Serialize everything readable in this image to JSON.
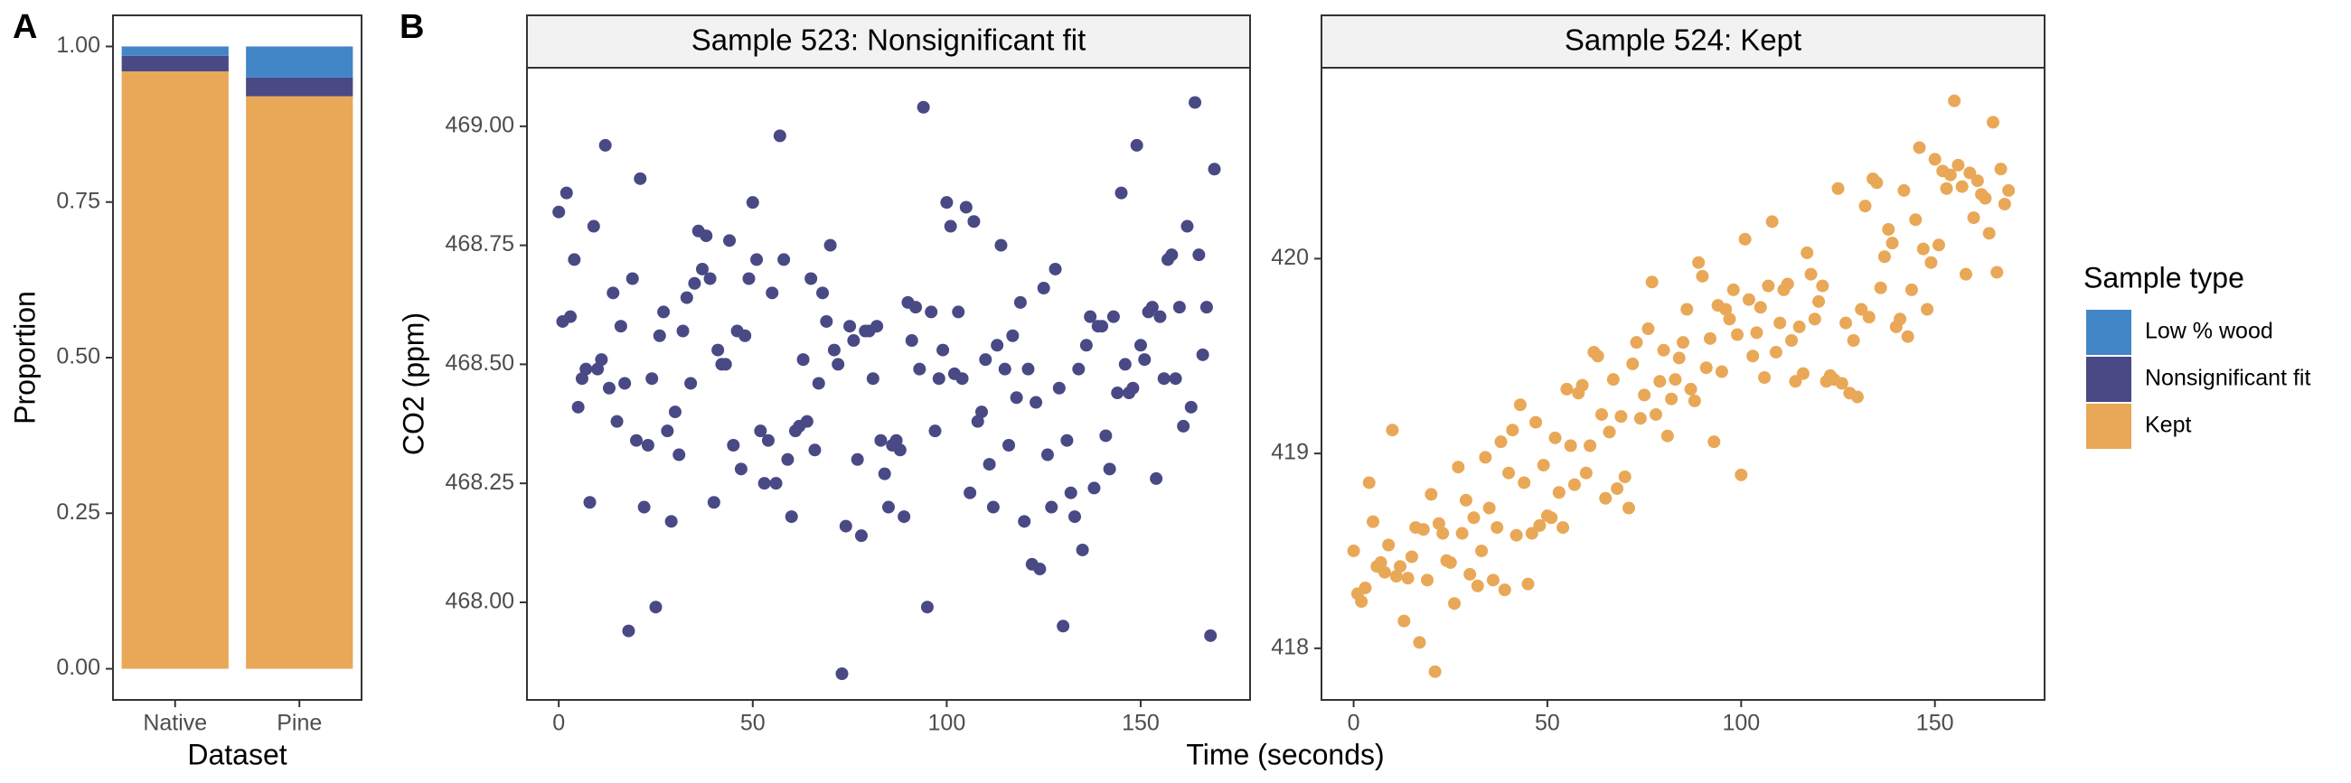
{
  "chart_data": [
    {
      "type": "bar",
      "panel_label": "A",
      "stacked": true,
      "categories": [
        "Native",
        "Pine"
      ],
      "xlabel": "Dataset",
      "ylabel": "Proportion",
      "series": [
        {
          "name": "Low % wood",
          "color": "#4286c8",
          "values": [
            0.015,
            0.05
          ]
        },
        {
          "name": "Nonsignificant fit",
          "color": "#494985",
          "values": [
            0.025,
            0.03
          ]
        },
        {
          "name": "Kept",
          "color": "#e9a857",
          "values": [
            0.96,
            0.92
          ]
        }
      ],
      "ylim": [
        -0.05,
        1.05
      ],
      "yticks": [
        {
          "value": 0,
          "label": "0.00"
        },
        {
          "value": 0.25,
          "label": "0.25"
        },
        {
          "value": 0.5,
          "label": "0.50"
        },
        {
          "value": 0.75,
          "label": "0.75"
        },
        {
          "value": 1,
          "label": "1.00"
        }
      ],
      "legend_title": "Sample type",
      "legend": "right"
    },
    {
      "type": "scatter",
      "panel_label": "B",
      "title": "Sample 523: Nonsignificant fit",
      "ylabel": "CO2 (ppm)",
      "xlabel": "Time (seconds)",
      "color": "#494985",
      "xlim": [
        -8.2,
        178.2
      ],
      "xticks": [
        0,
        50,
        100,
        150
      ],
      "ylim": [
        467.795,
        469.123
      ],
      "yticks": [
        {
          "value": 468,
          "label": "468.00"
        },
        468.25,
        {
          "value": 468.5,
          "label": "468.50"
        },
        468.75,
        {
          "value": 469,
          "label": "469.00"
        }
      ],
      "x": [
        0,
        1,
        2,
        3,
        4,
        5,
        6,
        7,
        8,
        9,
        10,
        11,
        12,
        13,
        14,
        15,
        16,
        17,
        18,
        19,
        20,
        21,
        22,
        23,
        24,
        25,
        26,
        27,
        28,
        29,
        30,
        31,
        32,
        33,
        34,
        35,
        36,
        37,
        38,
        39,
        40,
        41,
        42,
        43,
        44,
        45,
        46,
        47,
        48,
        49,
        50,
        51,
        52,
        53,
        54,
        55,
        56,
        57,
        58,
        59,
        60,
        61,
        62,
        63,
        64,
        65,
        66,
        67,
        68,
        69,
        70,
        71,
        72,
        73,
        74,
        75,
        76,
        77,
        78,
        79,
        80,
        81,
        82,
        83,
        84,
        85,
        86,
        87,
        88,
        89,
        90,
        91,
        92,
        93,
        94,
        95,
        96,
        97,
        98,
        99,
        100,
        101,
        102,
        103,
        104,
        105,
        106,
        107,
        108,
        109,
        110,
        111,
        112,
        113,
        114,
        115,
        116,
        117,
        118,
        119,
        120,
        121,
        122,
        123,
        124,
        125,
        126,
        127,
        128,
        129,
        130,
        131,
        132,
        133,
        134,
        135,
        136,
        137,
        138,
        139,
        140,
        141,
        142,
        143,
        144,
        145,
        146,
        147,
        148,
        149,
        150,
        151,
        152,
        153,
        154,
        155,
        156,
        157,
        158,
        159,
        160,
        161,
        162,
        163,
        164,
        165,
        166,
        167,
        168,
        169
      ],
      "values": [
        468.82,
        468.59,
        468.86,
        468.6,
        468.72,
        468.41,
        468.47,
        468.49,
        468.21,
        468.79,
        468.49,
        468.51,
        468.96,
        468.45,
        468.65,
        468.38,
        468.58,
        468.46,
        467.94,
        468.68,
        468.34,
        468.89,
        468.2,
        468.33,
        468.47,
        467.99,
        468.56,
        468.61,
        468.36,
        468.17,
        468.4,
        468.31,
        468.57,
        468.64,
        468.46,
        468.67,
        468.78,
        468.7,
        468.77,
        468.68,
        468.21,
        468.53,
        468.5,
        468.5,
        468.76,
        468.33,
        468.57,
        468.28,
        468.56,
        468.68,
        468.84,
        468.72,
        468.36,
        468.25,
        468.34,
        468.65,
        468.25,
        468.98,
        468.72,
        468.3,
        468.18,
        468.36,
        468.37,
        468.51,
        468.38,
        468.68,
        468.32,
        468.46,
        468.65,
        468.59,
        468.75,
        468.53,
        468.5,
        467.85,
        468.16,
        468.58,
        468.55,
        468.3,
        468.14,
        468.57,
        468.57,
        468.47,
        468.58,
        468.34,
        468.27,
        468.2,
        468.33,
        468.34,
        468.32,
        468.18,
        468.63,
        468.55,
        468.62,
        468.49,
        469.04,
        467.99,
        468.61,
        468.36,
        468.47,
        468.53,
        468.84,
        468.79,
        468.48,
        468.61,
        468.47,
        468.83,
        468.23,
        468.8,
        468.38,
        468.4,
        468.51,
        468.29,
        468.2,
        468.54,
        468.75,
        468.49,
        468.33,
        468.56,
        468.43,
        468.63,
        468.17,
        468.49,
        468.08,
        468.42,
        468.07,
        468.66,
        468.31,
        468.2,
        468.7,
        468.45,
        467.95,
        468.34,
        468.23,
        468.18,
        468.49,
        468.11,
        468.54,
        468.6,
        468.24,
        468.58,
        468.58,
        468.35,
        468.28,
        468.6,
        468.44,
        468.86,
        468.5,
        468.44,
        468.45,
        468.96,
        468.54,
        468.51,
        468.61,
        468.62,
        468.26,
        468.6,
        468.47,
        468.72,
        468.73,
        468.47,
        468.62,
        468.37,
        468.79,
        468.41,
        469.05,
        468.73,
        468.52,
        468.62,
        467.93,
        468.91
      ]
    },
    {
      "type": "scatter",
      "title": "Sample 524: Kept",
      "color": "#e9a857",
      "xlim": [
        -8.3,
        178.3
      ],
      "xticks": [
        0,
        50,
        100,
        150
      ],
      "ylim": [
        417.735,
        420.98
      ],
      "yticks": [
        418,
        419,
        420
      ],
      "x": [
        0,
        1,
        2,
        3,
        4,
        5,
        6,
        7,
        8,
        9,
        10,
        11,
        12,
        13,
        14,
        15,
        16,
        17,
        18,
        19,
        20,
        21,
        22,
        23,
        24,
        25,
        26,
        27,
        28,
        29,
        30,
        31,
        32,
        33,
        34,
        35,
        36,
        37,
        38,
        39,
        40,
        41,
        42,
        43,
        44,
        45,
        46,
        47,
        48,
        49,
        50,
        51,
        52,
        53,
        54,
        55,
        56,
        57,
        58,
        59,
        60,
        61,
        62,
        63,
        64,
        65,
        66,
        67,
        68,
        69,
        70,
        71,
        72,
        73,
        74,
        75,
        76,
        77,
        78,
        79,
        80,
        81,
        82,
        83,
        84,
        85,
        86,
        87,
        88,
        89,
        90,
        91,
        92,
        93,
        94,
        95,
        96,
        97,
        98,
        99,
        100,
        101,
        102,
        103,
        104,
        105,
        106,
        107,
        108,
        109,
        110,
        111,
        112,
        113,
        114,
        115,
        116,
        117,
        118,
        119,
        120,
        121,
        122,
        123,
        124,
        125,
        126,
        127,
        128,
        129,
        130,
        131,
        132,
        133,
        134,
        135,
        136,
        137,
        138,
        139,
        140,
        141,
        142,
        143,
        144,
        145,
        146,
        147,
        148,
        149,
        150,
        151,
        152,
        153,
        154,
        155,
        156,
        157,
        158,
        159,
        160,
        161,
        162,
        163,
        164,
        165,
        166,
        167,
        168,
        169
      ],
      "values": [
        418.5,
        418.28,
        418.24,
        418.31,
        418.85,
        418.65,
        418.42,
        418.44,
        418.39,
        418.53,
        419.12,
        418.37,
        418.42,
        418.14,
        418.36,
        418.47,
        418.62,
        418.03,
        418.61,
        418.35,
        418.79,
        417.88,
        418.64,
        418.59,
        418.45,
        418.44,
        418.23,
        418.93,
        418.59,
        418.76,
        418.38,
        418.67,
        418.32,
        418.5,
        418.98,
        418.72,
        418.35,
        418.62,
        419.06,
        418.3,
        418.9,
        419.12,
        418.58,
        419.25,
        418.85,
        418.33,
        418.59,
        419.16,
        418.63,
        418.94,
        418.68,
        418.67,
        419.08,
        418.8,
        418.62,
        419.33,
        419.04,
        418.84,
        419.31,
        419.35,
        418.9,
        419.04,
        419.52,
        419.5,
        419.2,
        418.77,
        419.11,
        419.38,
        418.82,
        419.19,
        418.88,
        418.72,
        419.46,
        419.57,
        419.18,
        419.3,
        419.64,
        419.88,
        419.2,
        419.37,
        419.53,
        419.09,
        419.28,
        419.38,
        419.49,
        419.57,
        419.74,
        419.33,
        419.27,
        419.98,
        419.91,
        419.44,
        419.59,
        419.06,
        419.76,
        419.42,
        419.74,
        419.69,
        419.84,
        419.61,
        418.89,
        420.1,
        419.79,
        419.5,
        419.62,
        419.75,
        419.39,
        419.86,
        420.19,
        419.52,
        419.67,
        419.84,
        419.87,
        419.58,
        419.37,
        419.65,
        419.41,
        420.03,
        419.92,
        419.69,
        419.78,
        419.86,
        419.37,
        419.4,
        419.38,
        420.36,
        419.36,
        419.67,
        419.31,
        419.58,
        419.29,
        419.74,
        420.27,
        419.7,
        420.41,
        420.39,
        419.85,
        420.01,
        420.15,
        420.08,
        419.65,
        419.69,
        420.35,
        419.6,
        419.84,
        420.2,
        420.57,
        420.05,
        419.74,
        419.98,
        420.51,
        420.07,
        420.45,
        420.36,
        420.43,
        420.81,
        420.48,
        420.37,
        419.92,
        420.44,
        420.21,
        420.4,
        420.33,
        420.31,
        420.13,
        420.7,
        419.93,
        420.46,
        420.28,
        420.35
      ]
    }
  ]
}
